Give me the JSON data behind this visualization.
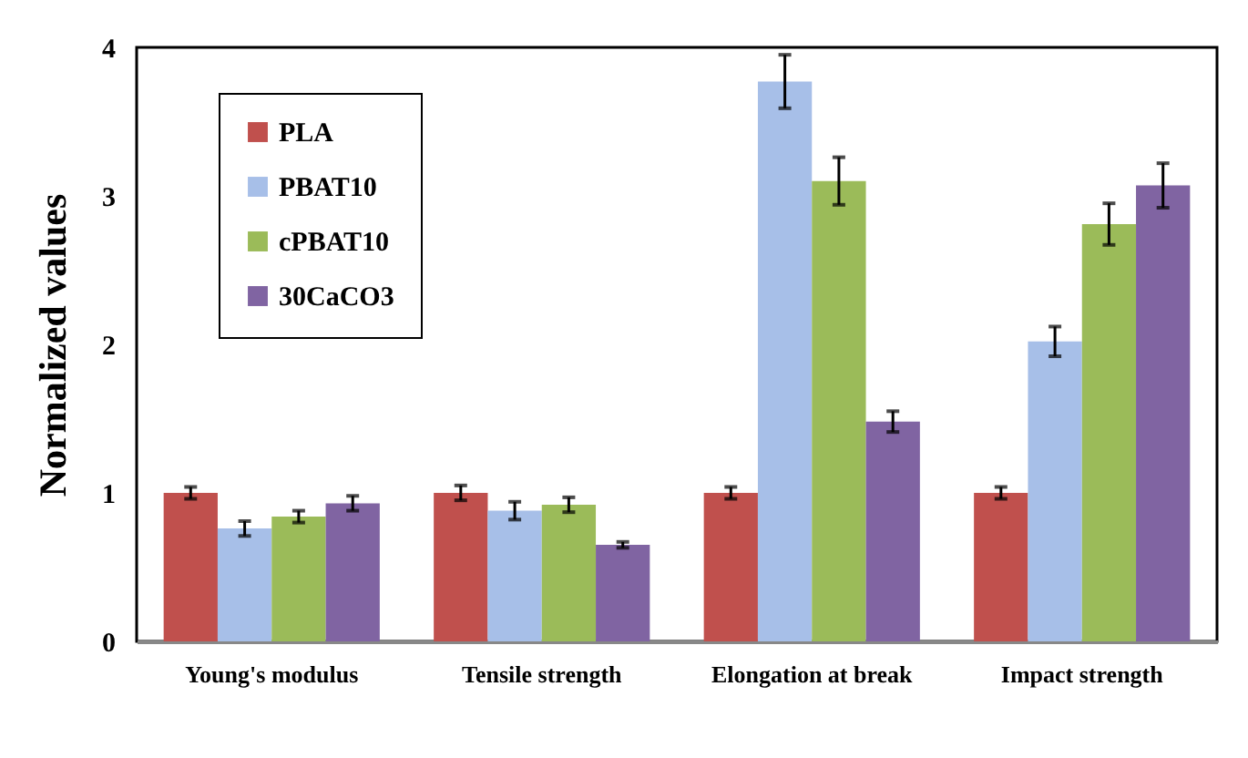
{
  "chart_data": {
    "type": "bar",
    "ylabel": "Normalized values",
    "categories": [
      "Young's modulus",
      "Tensile strength",
      "Elongation at break",
      "Impact strength"
    ],
    "series": [
      {
        "name": "PLA",
        "color": "#c0504d",
        "values": [
          1.0,
          1.0,
          1.0,
          1.0
        ],
        "errors": [
          0.04,
          0.05,
          0.04,
          0.04
        ]
      },
      {
        "name": "PBAT10",
        "color": "#a7bfe8",
        "values": [
          0.76,
          0.88,
          3.77,
          2.02
        ],
        "errors": [
          0.05,
          0.06,
          0.18,
          0.1
        ]
      },
      {
        "name": "cPBAT10",
        "color": "#9bbb59",
        "values": [
          0.84,
          0.92,
          3.1,
          2.81
        ],
        "errors": [
          0.04,
          0.05,
          0.16,
          0.14
        ]
      },
      {
        "name": "30CaCO3",
        "color": "#8064a2",
        "values": [
          0.93,
          0.65,
          1.48,
          3.07
        ],
        "errors": [
          0.05,
          0.02,
          0.07,
          0.15
        ]
      }
    ],
    "ylim": [
      0,
      4
    ],
    "yticks": [
      0,
      1,
      2,
      3,
      4
    ],
    "grid": false,
    "legend": "top left"
  }
}
